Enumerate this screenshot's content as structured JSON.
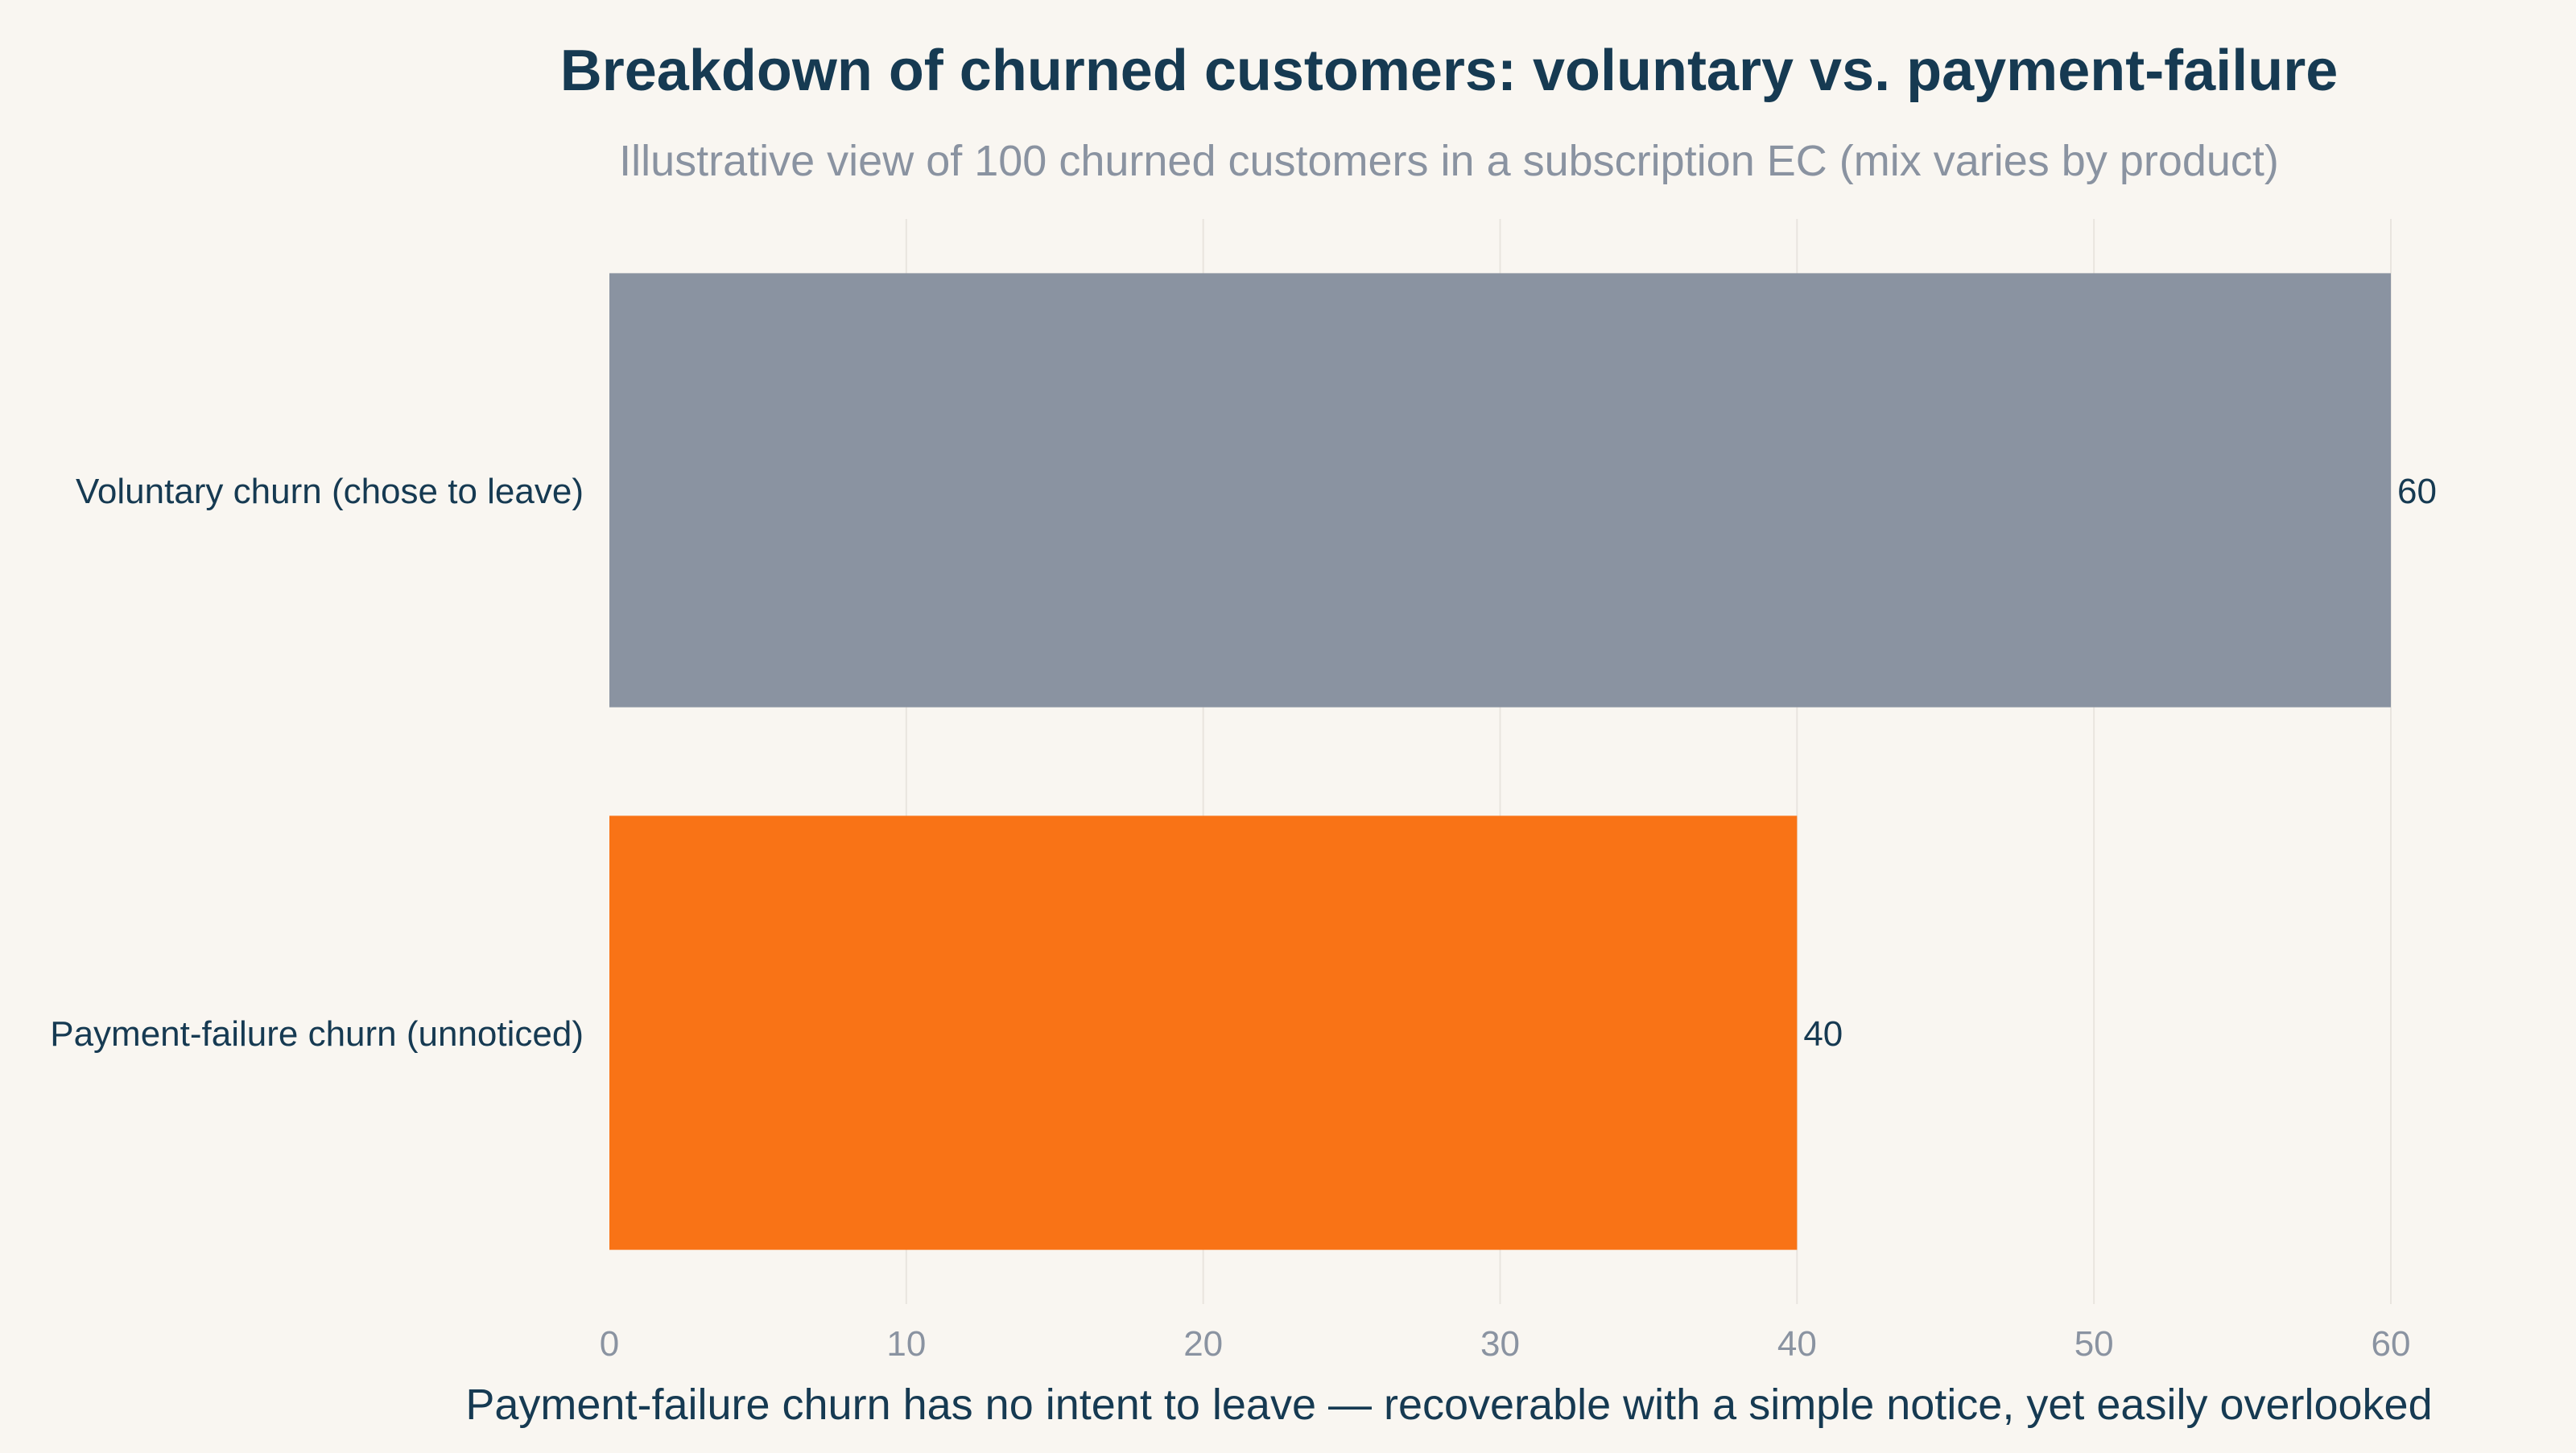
{
  "chart_data": {
    "type": "bar",
    "orientation": "horizontal",
    "title": "Breakdown of churned customers: voluntary vs. payment-failure",
    "subtitle": "Illustrative view of 100 churned customers in a subscription EC (mix varies by product)",
    "xlabel": "Payment-failure churn has no intent to leave — recoverable with a simple notice, yet easily overlooked",
    "ylabel": "",
    "categories": [
      "Voluntary churn (chose to leave)",
      "Payment-failure churn (unnoticed)"
    ],
    "values": [
      60,
      40
    ],
    "data_labels": [
      "60",
      "40"
    ],
    "colors": [
      "#8a93a1",
      "#f97316"
    ],
    "xlim": [
      0,
      60
    ],
    "xticks": [
      0,
      10,
      20,
      30,
      40,
      50,
      60
    ],
    "grid": "vertical",
    "legend": "none"
  },
  "colors": {
    "background": "#f9f6f1",
    "title": "#163a52",
    "subtitle": "#8a93a1",
    "tick": "#8a93a1",
    "label": "#163a52",
    "grid": "#e9e5df"
  }
}
